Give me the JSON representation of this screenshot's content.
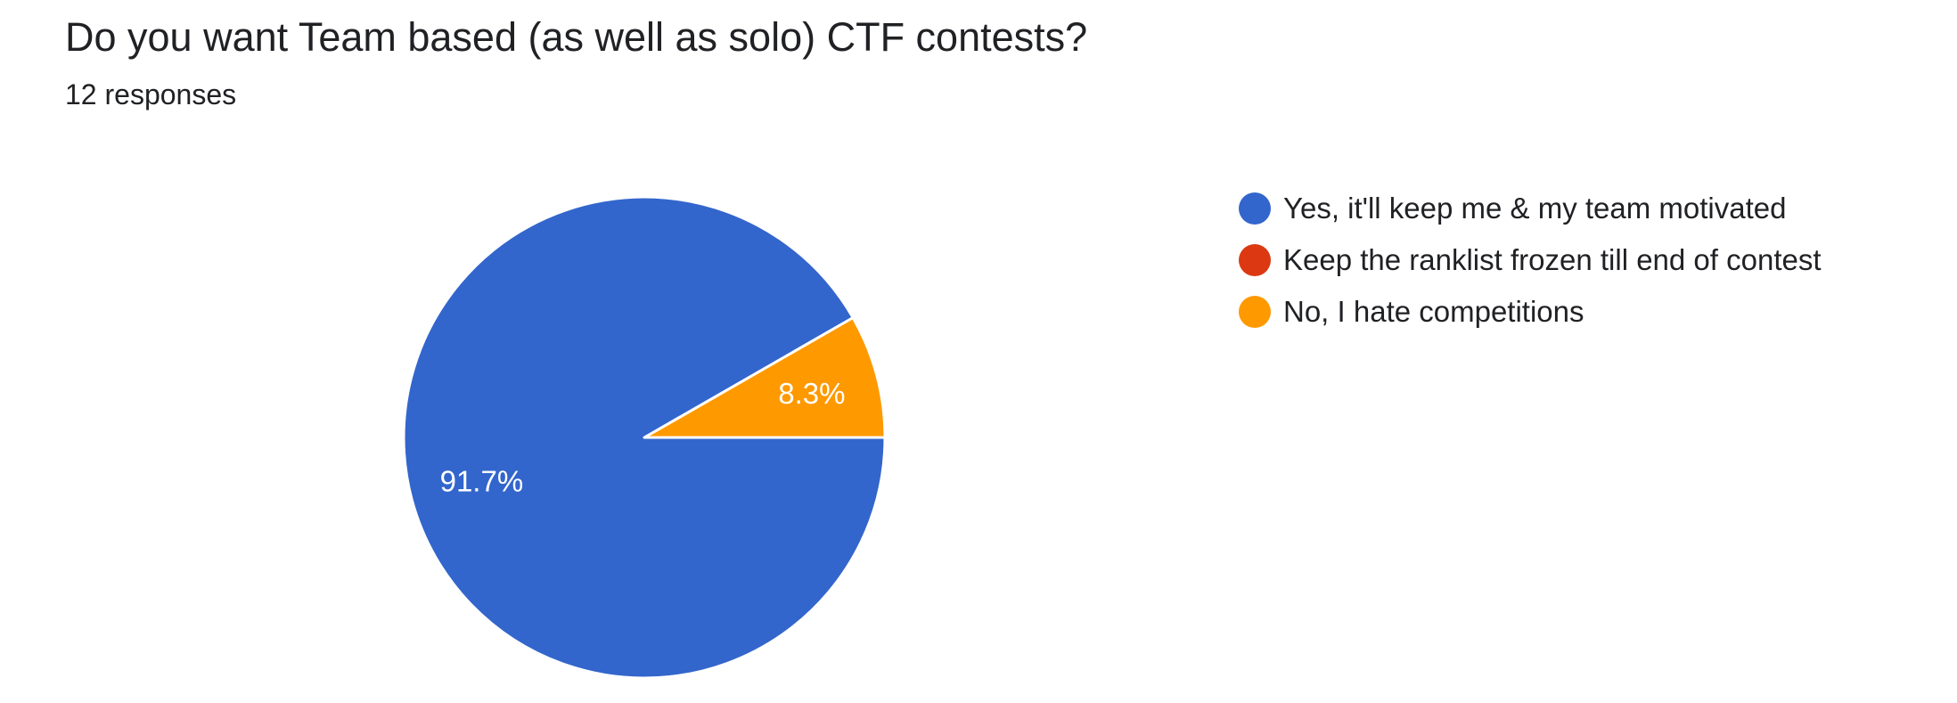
{
  "question": {
    "title": "Do you want Team based (as well as solo) CTF contests?",
    "responses": "12 responses"
  },
  "chart_data": {
    "type": "pie",
    "title": "Do you want Team based (as well as solo) CTF contests?",
    "categories": [
      "Yes, it'll keep me & my team motivated",
      "Keep the ranklist frozen till end of contest",
      "No, I hate competitions"
    ],
    "values": [
      91.7,
      0,
      8.3
    ],
    "data_labels": [
      "91.7%",
      "",
      "8.3%"
    ],
    "colors": [
      "#3366cc",
      "#dc3912",
      "#ff9900"
    ],
    "legend_position": "right"
  }
}
